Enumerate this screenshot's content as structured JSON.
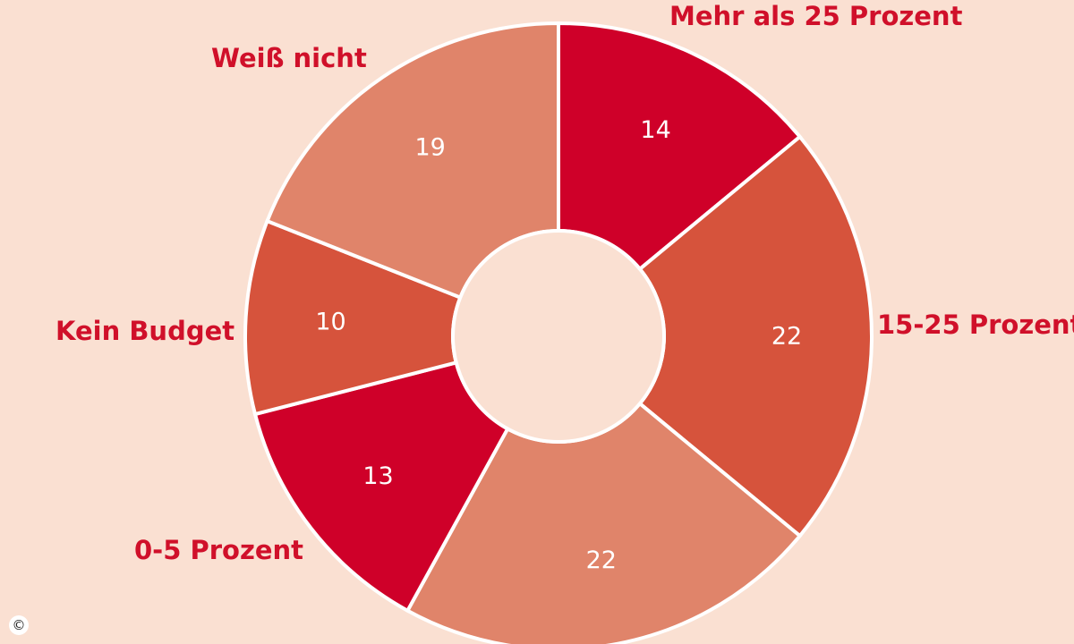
{
  "chart_data": {
    "type": "pie",
    "variant": "donut",
    "start_angle_deg": 0,
    "direction": "clockwise",
    "slices": [
      {
        "label": "Mehr als 25 Prozent",
        "value": 14,
        "color": "#cf0029"
      },
      {
        "label": "15-25 Prozent",
        "value": 22,
        "color": "#d6533c"
      },
      {
        "label": "",
        "value": 22,
        "color": "#e0846a"
      },
      {
        "label": "0-5 Prozent",
        "value": 13,
        "color": "#cf0029"
      },
      {
        "label": "Kein Budget",
        "value": 10,
        "color": "#d6533c"
      },
      {
        "label": "Weiß nicht",
        "value": 19,
        "color": "#e0846a"
      }
    ],
    "center_color": "#fae0d2",
    "background_color": "#fae0d2",
    "label_color": "#d0102a",
    "value_label_color": "#ffffff"
  },
  "copyright_symbol": "©"
}
